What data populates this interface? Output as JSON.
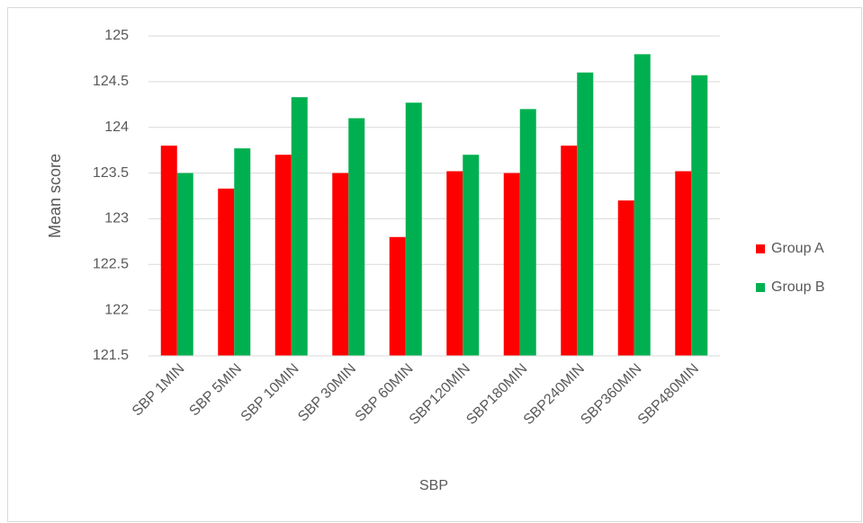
{
  "chart_data": {
    "type": "bar",
    "x_label": "SBP",
    "y_label": "Mean score",
    "categories": [
      "SBP 1MIN",
      "SBP 5MIN",
      "SBP 10MIN",
      "SBP 30MIN",
      "SBP 60MIN",
      "SBP120MIN",
      "SBP180MIN",
      "SBP240MIN",
      "SBP360MIN",
      "SBP480MIN"
    ],
    "series": [
      {
        "name": "Group A",
        "color": "#ff0000",
        "values": [
          123.8,
          123.33,
          123.7,
          123.5,
          122.8,
          123.52,
          123.5,
          123.8,
          123.2,
          123.52
        ]
      },
      {
        "name": "Group B",
        "color": "#00b050",
        "values": [
          123.5,
          123.77,
          124.33,
          124.1,
          124.27,
          123.7,
          124.2,
          124.6,
          124.8,
          124.57
        ]
      }
    ],
    "ylim": [
      121.5,
      125
    ],
    "yticks": [
      121.5,
      122,
      122.5,
      123,
      123.5,
      124,
      124.5,
      125
    ],
    "grid": true,
    "legend": "right"
  }
}
